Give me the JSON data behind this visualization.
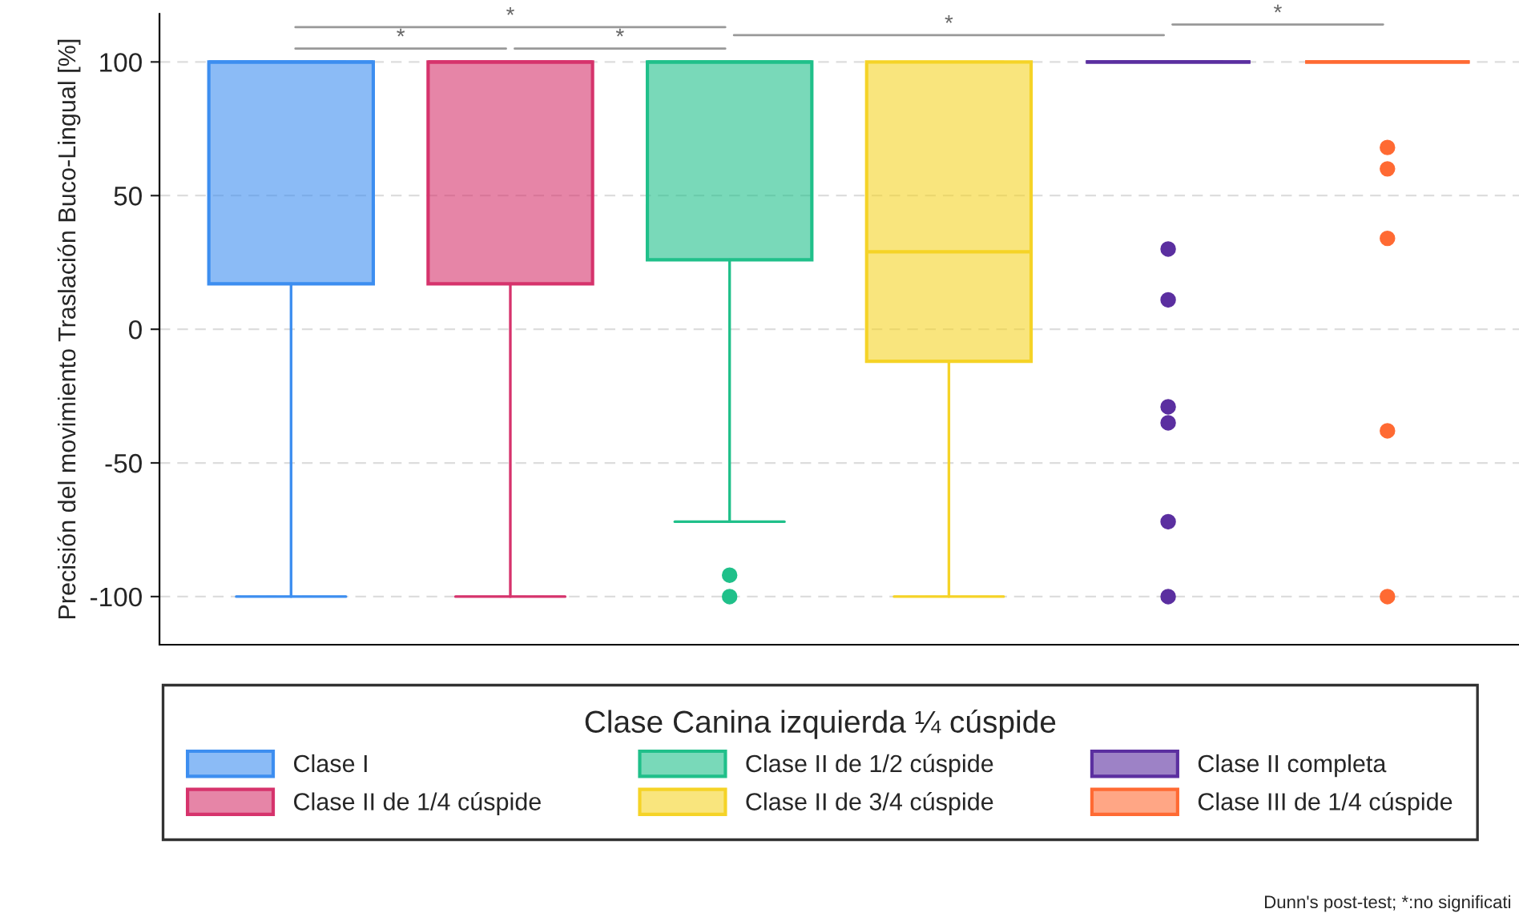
{
  "chart_data": {
    "type": "box",
    "ylabel": "Precisión del movimiento Traslación Buco-Lingual [%]",
    "legend_title": "Clase Canina izquierda ¼ cúspide",
    "categories": [
      null,
      null,
      null,
      null,
      null,
      null
    ],
    "series": [
      {
        "name": "Clase I",
        "color": "#3d8ef0",
        "boxes": [
          {
            "low": -100,
            "q1": 17,
            "median": 100,
            "q3": 100,
            "high": 100
          },
          null,
          null,
          null,
          null,
          null
        ]
      },
      {
        "name": "Clase II de 1/4 cúspide",
        "color": "#d6336c",
        "boxes": [
          null,
          {
            "low": -100,
            "q1": 17,
            "median": 100,
            "q3": 100,
            "high": 100
          },
          null,
          null,
          null,
          null
        ]
      },
      {
        "name": "Clase II de 1/2 cúspide",
        "color": "#20c08a",
        "boxes": [
          null,
          null,
          {
            "low": -72,
            "q1": 26,
            "median": 100,
            "q3": 100,
            "high": 100,
            "outliers": [
              -92,
              -100
            ]
          },
          null,
          null,
          null
        ]
      },
      {
        "name": "Clase II de 3/4 cúspide",
        "color": "#f5d327",
        "boxes": [
          null,
          null,
          null,
          {
            "low": -100,
            "q1": -12,
            "median": 29,
            "q3": 100,
            "high": 100
          },
          null,
          null
        ]
      },
      {
        "name": "Clase II completa",
        "color": "#5b2fa0",
        "boxes": [
          null,
          null,
          null,
          null,
          {
            "low": 100,
            "q1": 100,
            "median": 100,
            "q3": 100,
            "high": 100,
            "outliers": [
              30,
              11,
              -29,
              -35,
              -72,
              -100
            ]
          },
          null
        ]
      },
      {
        "name": "Clase III de 1/4 cúspide",
        "color": "#ff6a33",
        "boxes": [
          null,
          null,
          null,
          null,
          null,
          {
            "low": 100,
            "q1": 100,
            "median": 100,
            "q3": 100,
            "high": 100,
            "outliers": [
              68,
              60,
              34,
              -38,
              -100
            ]
          }
        ]
      }
    ],
    "ylim": [
      -118,
      118
    ],
    "yticks": [
      -100,
      -50,
      0,
      50,
      100
    ],
    "grid": "y",
    "legend": "bottom",
    "tick_labels": "y",
    "annotations": [
      "*",
      "*",
      "*",
      "*",
      "*",
      "Dunn's post-test; *:no significati"
    ]
  }
}
